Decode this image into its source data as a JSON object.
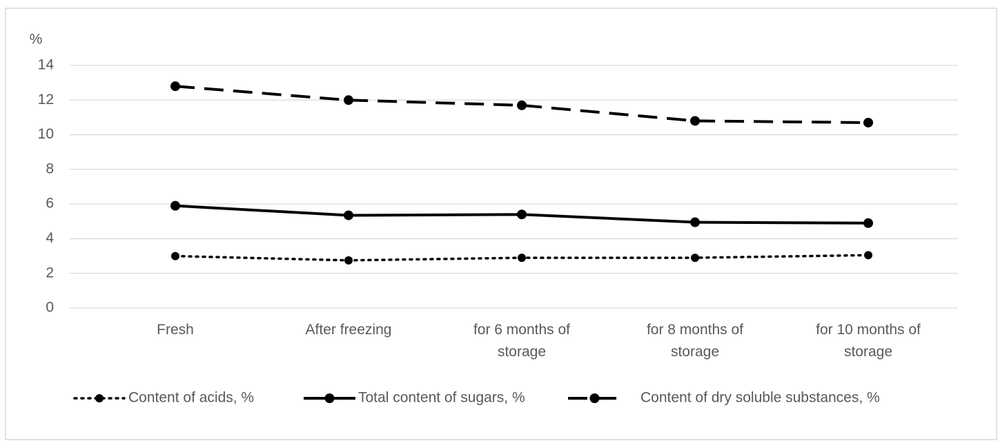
{
  "chart_data": {
    "type": "line",
    "y_label": "%",
    "categories": [
      "Fresh",
      "After freezing",
      "for 6 months of storage",
      "for 8 months of storage",
      "for 10 months of storage"
    ],
    "series": [
      {
        "name": "Content of acids, %",
        "color": "#000000",
        "dash": "dotted",
        "values": [
          3.0,
          2.75,
          2.9,
          2.9,
          3.05
        ]
      },
      {
        "name": "Total content of sugars, %",
        "color": "#000000",
        "dash": "solid",
        "values": [
          5.9,
          5.35,
          5.4,
          4.95,
          4.9
        ]
      },
      {
        "name": "Content of dry soluble substances, %",
        "color": "#000000",
        "dash": "dashed",
        "values": [
          12.8,
          12.0,
          11.7,
          10.8,
          10.7
        ]
      }
    ],
    "ylim": [
      0,
      14
    ],
    "yticks": [
      0,
      2,
      4,
      6,
      8,
      10,
      12,
      14
    ],
    "grid": true,
    "legend": "bottom"
  }
}
